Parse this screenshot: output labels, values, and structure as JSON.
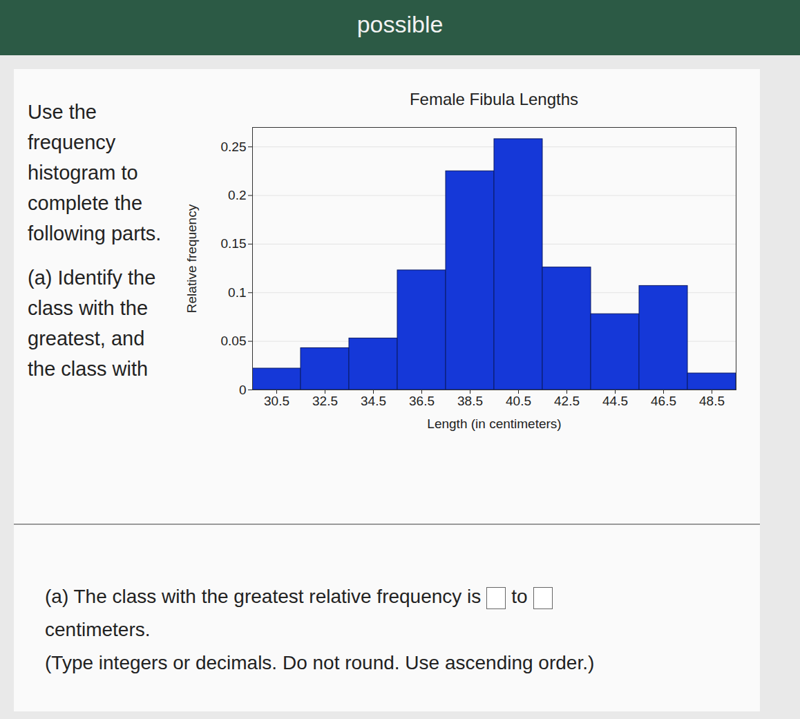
{
  "header": "possible",
  "instructions": "Use the frequency histogram to complete the following parts.",
  "part_a_prompt": "(a) Identify the class with the greatest, and the class with",
  "chart_data": {
    "type": "histogram",
    "title": "Female Fibula Lengths",
    "x_label": "Length (in centimeters)",
    "y_label": "Relative frequency",
    "bins": [
      29.5,
      31.5,
      33.5,
      35.5,
      37.5,
      39.5,
      41.5,
      43.5,
      45.5,
      47.5,
      49.5
    ],
    "values": [
      0.022,
      0.043,
      0.053,
      0.123,
      0.225,
      0.258,
      0.126,
      0.078,
      0.107,
      0.017
    ],
    "color": "#1538d8",
    "xlim": [
      29.5,
      49.5
    ],
    "xticks": [
      30.5,
      32.5,
      34.5,
      36.5,
      38.5,
      40.5,
      42.5,
      44.5,
      46.5,
      48.5
    ],
    "ylim": [
      0,
      0.27
    ],
    "yticks": [
      0,
      0.05,
      0.1,
      0.15,
      0.2,
      0.25
    ],
    "grid": true
  },
  "answer": {
    "text_before": "(a) The class with the greatest relative frequency is",
    "connector": "to",
    "text_after": "centimeters.",
    "hint": "(Type integers or decimals. Do not round. Use ascending order.)"
  }
}
